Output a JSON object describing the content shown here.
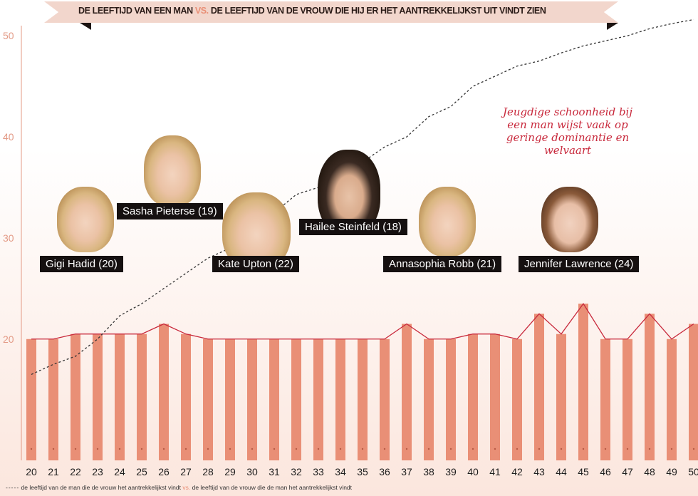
{
  "chart_data": {
    "type": "bar",
    "title": "DE LEEFTIJD VAN EEN MAN VS. DE LEEFTIJD VAN DE VROUW DIE HIJ ER HET AANTREKKELIJKST UIT VINDT ZIEN",
    "title_parts": [
      "DE LEEFTIJD VAN EEN MAN",
      "VS.",
      "DE LEEFTIJD VAN DE VROUW DIE HIJ ER HET AANTREKKELIJKST UIT VINDT ZIEN"
    ],
    "categories": [
      "20",
      "21",
      "22",
      "23",
      "24",
      "25",
      "26",
      "27",
      "28",
      "29",
      "30",
      "31",
      "32",
      "33",
      "34",
      "35",
      "36",
      "37",
      "38",
      "39",
      "40",
      "41",
      "42",
      "43",
      "44",
      "45",
      "46",
      "47",
      "48",
      "49",
      "50"
    ],
    "ylim": [
      8,
      51
    ],
    "yticks": [
      "20",
      "30",
      "40",
      "50"
    ],
    "series": [
      {
        "name": "de leeftijd van de vrouw die de man het aantrekkelijkst vindt",
        "type": "bar+line",
        "values": [
          20,
          20,
          20.5,
          20.5,
          20.5,
          20.5,
          21.5,
          20.5,
          20,
          20,
          20,
          20,
          20,
          20,
          20,
          20,
          20,
          21.5,
          20,
          20,
          20.5,
          20.5,
          20,
          22.5,
          20.5,
          23.5,
          20,
          20,
          22.5,
          20,
          21.5
        ]
      },
      {
        "name": "de leeftijd van de man die de vrouw het aantrekkelijkst vindt",
        "type": "dashed-line",
        "values": [
          16.5,
          17.5,
          18.3,
          20,
          22.3,
          23.5,
          25,
          26.5,
          28,
          29,
          31.5,
          32.5,
          34.3,
          35,
          36.5,
          37.5,
          39,
          40,
          42,
          43,
          45,
          46,
          47,
          47.5,
          48.3,
          49,
          49.5,
          50,
          50.7,
          51.2,
          51.6
        ]
      }
    ],
    "colors": {
      "bar": "#e98f76",
      "line": "#c8283b",
      "dashed": "#333333",
      "tick": "#e39a86"
    },
    "legend": {
      "dashed_label": "de leeftijd van de man die de vrouw het aantrekkelijkst vindt",
      "vs": "vs.",
      "line_label": "de leeftijd van de vrouw die de man het aantrekkelijkst vindt"
    },
    "annotations": {
      "note": "Jeugdige schoonheid bij een man wijst vaak op geringe dominantie en welvaart",
      "people": [
        {
          "label": "Gigi Hadid (20)"
        },
        {
          "label": "Sasha Pieterse (19)"
        },
        {
          "label": "Kate Upton (22)"
        },
        {
          "label": "Hailee Steinfeld (18)"
        },
        {
          "label": "Annasophia Robb (21)"
        },
        {
          "label": "Jennifer Lawrence (24)"
        }
      ]
    }
  }
}
